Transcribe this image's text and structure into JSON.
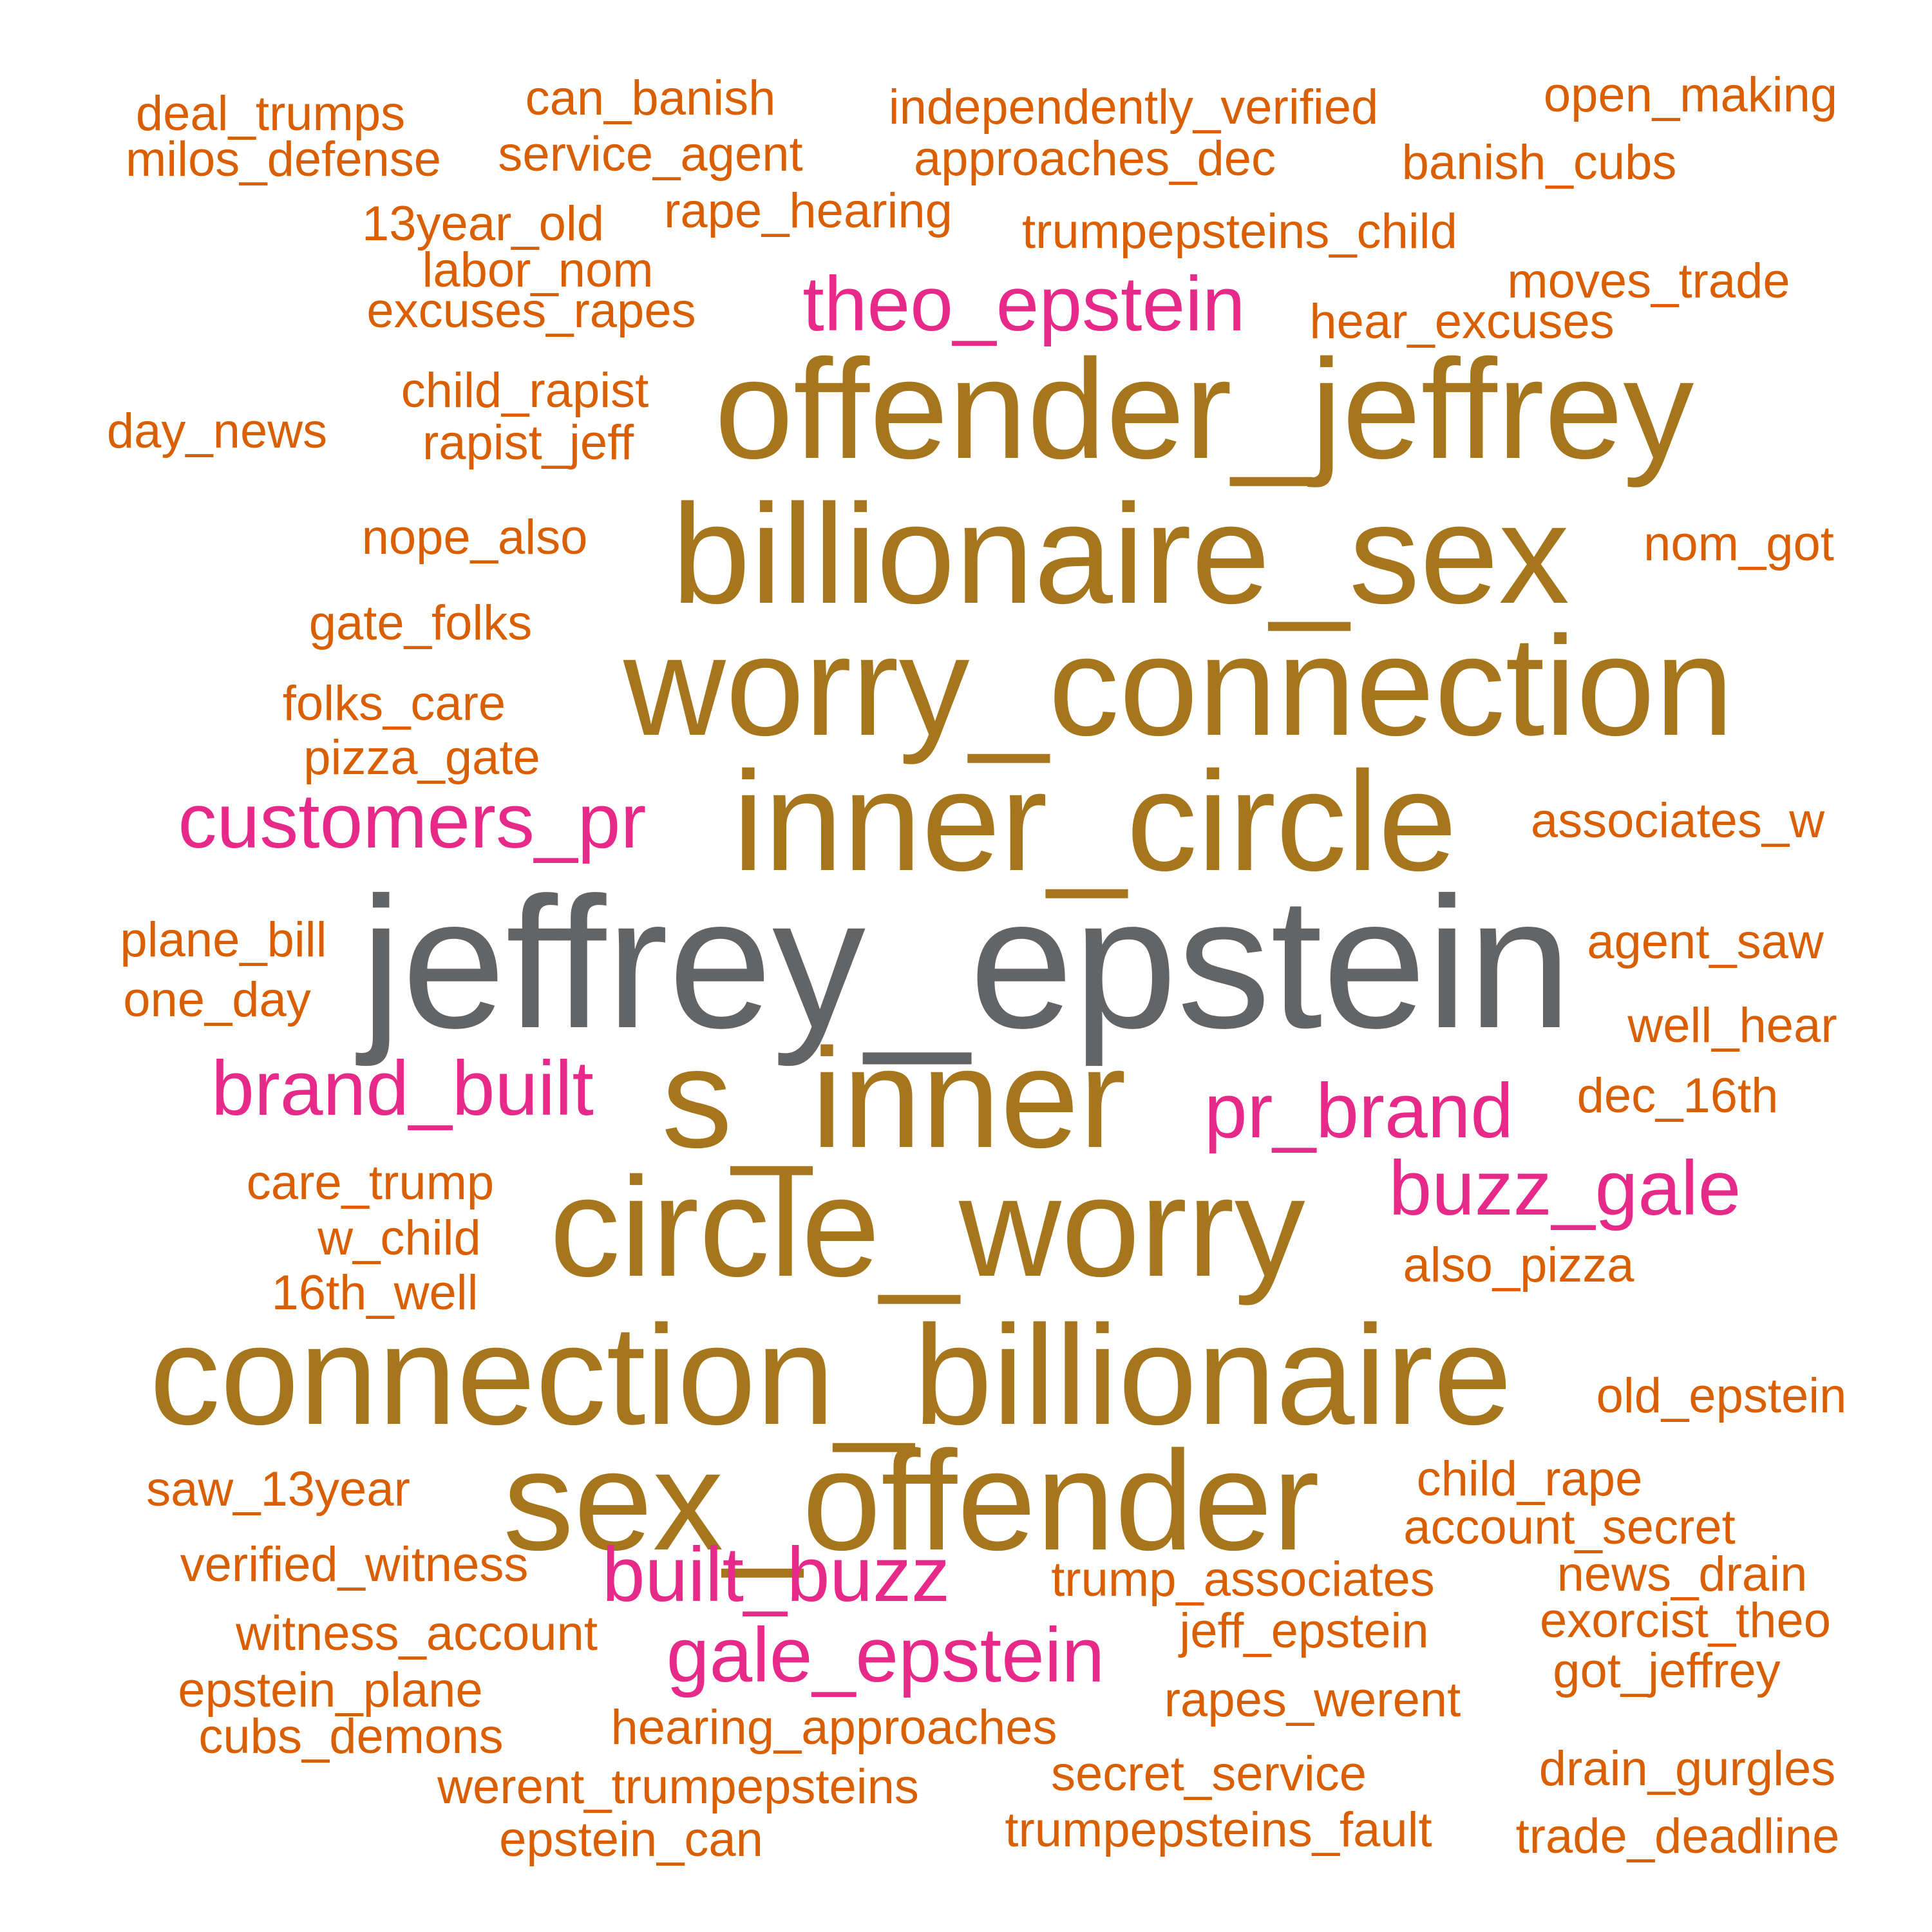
{
  "colors": {
    "rank1": "#636466",
    "rank2": "#a6761d",
    "rank3": "#e7298a",
    "rank4": "#d95f02",
    "background": "#ffffff"
  },
  "words": [
    {
      "text": "jeffrey_epstein",
      "rank": 1
    },
    {
      "text": "offender_jeffrey",
      "rank": 2
    },
    {
      "text": "billionaire_sex",
      "rank": 2
    },
    {
      "text": "worry_connection",
      "rank": 2
    },
    {
      "text": "inner_circle",
      "rank": 2
    },
    {
      "text": "s_inner",
      "rank": 2
    },
    {
      "text": "circle_worry",
      "rank": 2
    },
    {
      "text": "connection_billionaire",
      "rank": 2
    },
    {
      "text": "sex_offender",
      "rank": 2
    },
    {
      "text": "theo_epstein",
      "rank": 3
    },
    {
      "text": "customers_pr",
      "rank": 3
    },
    {
      "text": "brand_built",
      "rank": 3
    },
    {
      "text": "pr_brand",
      "rank": 3
    },
    {
      "text": "buzz_gale",
      "rank": 3
    },
    {
      "text": "built_buzz",
      "rank": 3
    },
    {
      "text": "gale_epstein",
      "rank": 3
    },
    {
      "text": "deal_trumps",
      "rank": 4
    },
    {
      "text": "can_banish",
      "rank": 4
    },
    {
      "text": "independently_verified",
      "rank": 4
    },
    {
      "text": "open_making",
      "rank": 4
    },
    {
      "text": "milos_defense",
      "rank": 4
    },
    {
      "text": "service_agent",
      "rank": 4
    },
    {
      "text": "approaches_dec",
      "rank": 4
    },
    {
      "text": "banish_cubs",
      "rank": 4
    },
    {
      "text": "13year_old",
      "rank": 4
    },
    {
      "text": "rape_hearing",
      "rank": 4
    },
    {
      "text": "trumpepsteins_child",
      "rank": 4
    },
    {
      "text": "labor_nom",
      "rank": 4
    },
    {
      "text": "moves_trade",
      "rank": 4
    },
    {
      "text": "excuses_rapes",
      "rank": 4
    },
    {
      "text": "hear_excuses",
      "rank": 4
    },
    {
      "text": "child_rapist",
      "rank": 4
    },
    {
      "text": "day_news",
      "rank": 4
    },
    {
      "text": "rapist_jeff",
      "rank": 4
    },
    {
      "text": "nope_also",
      "rank": 4
    },
    {
      "text": "nom_got",
      "rank": 4
    },
    {
      "text": "gate_folks",
      "rank": 4
    },
    {
      "text": "folks_care",
      "rank": 4
    },
    {
      "text": "pizza_gate",
      "rank": 4
    },
    {
      "text": "associates_w",
      "rank": 4
    },
    {
      "text": "plane_bill",
      "rank": 4
    },
    {
      "text": "agent_saw",
      "rank": 4
    },
    {
      "text": "one_day",
      "rank": 4
    },
    {
      "text": "well_hear",
      "rank": 4
    },
    {
      "text": "dec_16th",
      "rank": 4
    },
    {
      "text": "care_trump",
      "rank": 4
    },
    {
      "text": "w_child",
      "rank": 4
    },
    {
      "text": "also_pizza",
      "rank": 4
    },
    {
      "text": "16th_well",
      "rank": 4
    },
    {
      "text": "old_epstein",
      "rank": 4
    },
    {
      "text": "child_rape",
      "rank": 4
    },
    {
      "text": "saw_13year",
      "rank": 4
    },
    {
      "text": "account_secret",
      "rank": 4
    },
    {
      "text": "verified_witness",
      "rank": 4
    },
    {
      "text": "trump_associates",
      "rank": 4
    },
    {
      "text": "news_drain",
      "rank": 4
    },
    {
      "text": "witness_account",
      "rank": 4
    },
    {
      "text": "exorcist_theo",
      "rank": 4
    },
    {
      "text": "jeff_epstein",
      "rank": 4
    },
    {
      "text": "epstein_plane",
      "rank": 4
    },
    {
      "text": "got_jeffrey",
      "rank": 4
    },
    {
      "text": "rapes_werent",
      "rank": 4
    },
    {
      "text": "cubs_demons",
      "rank": 4
    },
    {
      "text": "hearing_approaches",
      "rank": 4
    },
    {
      "text": "drain_gurgles",
      "rank": 4
    },
    {
      "text": "werent_trumpepsteins",
      "rank": 4
    },
    {
      "text": "secret_service",
      "rank": 4
    },
    {
      "text": "trumpepsteins_fault",
      "rank": 4
    },
    {
      "text": "trade_deadline",
      "rank": 4
    },
    {
      "text": "epstein_can",
      "rank": 4
    }
  ]
}
